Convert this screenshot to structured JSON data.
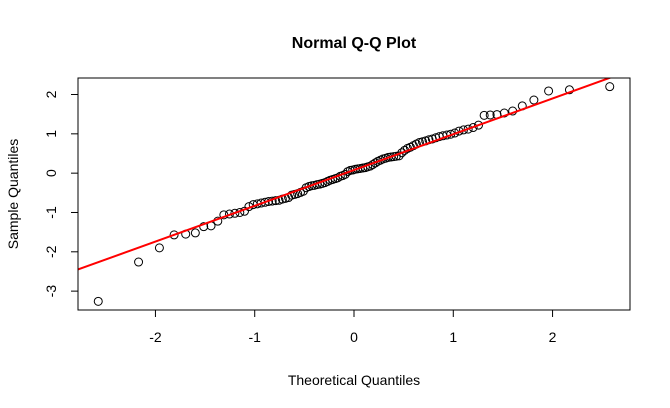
{
  "chart_data": {
    "type": "scatter",
    "title": "Normal Q-Q Plot",
    "xlabel": "Theoretical Quantiles",
    "ylabel": "Sample Quantiles",
    "xlim": [
      -2.78,
      2.78
    ],
    "ylim": [
      -3.48,
      2.42
    ],
    "xticks": [
      -2,
      -1,
      0,
      1,
      2
    ],
    "yticks": [
      -3,
      -2,
      -1,
      0,
      1,
      2
    ],
    "xtick_labels": [
      "-2",
      "-1",
      "0",
      "1",
      "2"
    ],
    "ytick_labels": [
      "-3",
      "-2",
      "-1",
      "0",
      "1",
      "2"
    ],
    "grid": false,
    "point_style": "open-circle",
    "point_color": "#000000",
    "reference_line": {
      "intercept": 0.08,
      "slope": 0.91,
      "color": "#ff0000"
    },
    "x": [
      -2.576,
      -2.17,
      -1.96,
      -1.812,
      -1.695,
      -1.598,
      -1.514,
      -1.44,
      -1.372,
      -1.311,
      -1.254,
      -1.2,
      -1.15,
      -1.103,
      -1.058,
      -1.015,
      -0.974,
      -0.935,
      -0.896,
      -0.86,
      -0.824,
      -0.789,
      -0.755,
      -0.722,
      -0.69,
      -0.659,
      -0.628,
      -0.598,
      -0.568,
      -0.539,
      -0.51,
      -0.482,
      -0.454,
      -0.426,
      -0.399,
      -0.372,
      -0.345,
      -0.319,
      -0.292,
      -0.266,
      -0.24,
      -0.215,
      -0.189,
      -0.164,
      -0.138,
      -0.113,
      -0.088,
      -0.063,
      -0.038,
      -0.013,
      0.013,
      0.038,
      0.063,
      0.088,
      0.113,
      0.138,
      0.164,
      0.189,
      0.215,
      0.24,
      0.266,
      0.292,
      0.319,
      0.345,
      0.372,
      0.399,
      0.426,
      0.454,
      0.482,
      0.51,
      0.539,
      0.568,
      0.598,
      0.628,
      0.659,
      0.69,
      0.722,
      0.755,
      0.789,
      0.824,
      0.86,
      0.896,
      0.935,
      0.974,
      1.015,
      1.058,
      1.103,
      1.15,
      1.2,
      1.254,
      1.311,
      1.372,
      1.44,
      1.514,
      1.598,
      1.695,
      1.812,
      1.96,
      2.17,
      2.576
    ],
    "y": [
      -3.26,
      -2.26,
      -1.9,
      -1.57,
      -1.55,
      -1.52,
      -1.36,
      -1.34,
      -1.22,
      -1.06,
      -1.04,
      -1.02,
      -1.0,
      -0.97,
      -0.85,
      -0.8,
      -0.78,
      -0.76,
      -0.74,
      -0.72,
      -0.71,
      -0.7,
      -0.69,
      -0.66,
      -0.64,
      -0.62,
      -0.56,
      -0.54,
      -0.52,
      -0.49,
      -0.46,
      -0.37,
      -0.34,
      -0.32,
      -0.31,
      -0.29,
      -0.28,
      -0.26,
      -0.24,
      -0.21,
      -0.18,
      -0.16,
      -0.14,
      -0.12,
      -0.08,
      -0.06,
      -0.03,
      0.04,
      0.07,
      0.08,
      0.1,
      0.11,
      0.12,
      0.13,
      0.14,
      0.16,
      0.18,
      0.22,
      0.26,
      0.3,
      0.33,
      0.36,
      0.38,
      0.4,
      0.41,
      0.42,
      0.43,
      0.44,
      0.52,
      0.58,
      0.63,
      0.66,
      0.7,
      0.74,
      0.78,
      0.8,
      0.82,
      0.85,
      0.87,
      0.9,
      0.93,
      0.95,
      0.97,
      0.99,
      1.02,
      1.07,
      1.1,
      1.12,
      1.16,
      1.22,
      1.47,
      1.48,
      1.49,
      1.53,
      1.58,
      1.71,
      1.86,
      2.09,
      2.12,
      2.2
    ]
  }
}
